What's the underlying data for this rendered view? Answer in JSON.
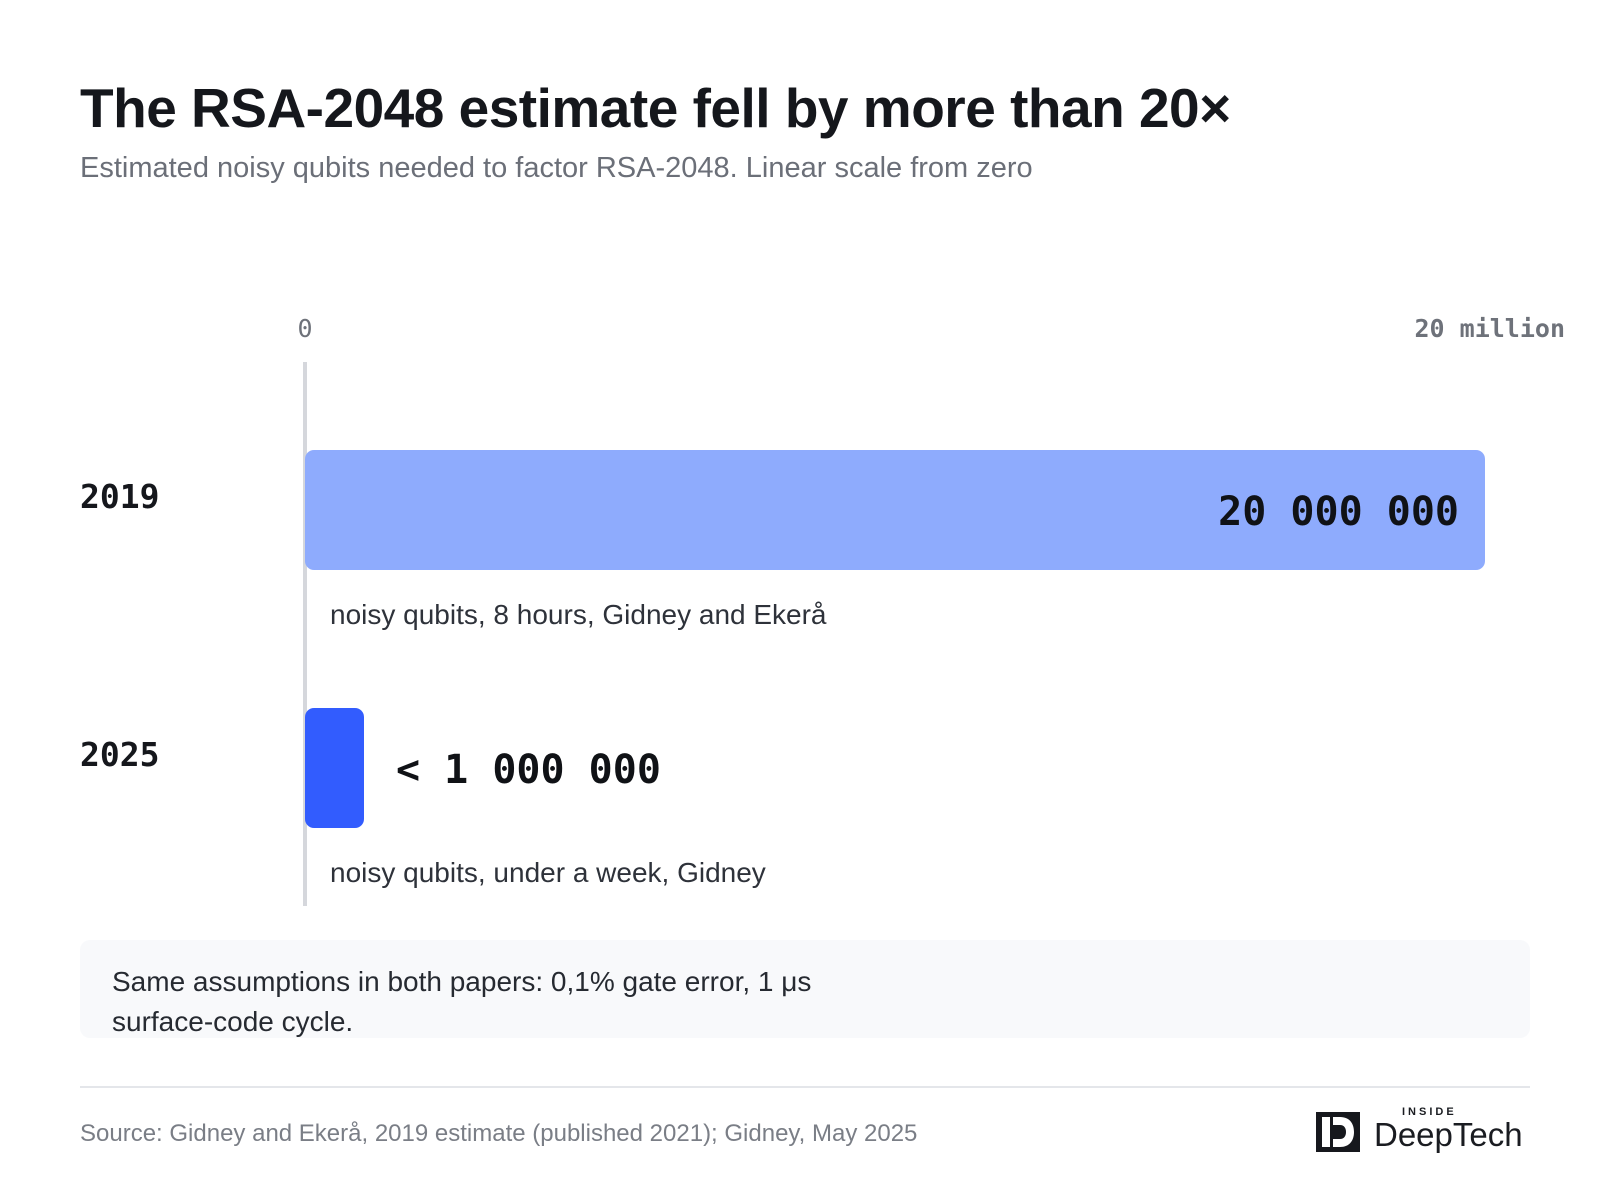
{
  "title": "The RSA-2048 estimate fell by more than 20×",
  "subtitle": "Estimated noisy qubits needed to factor RSA-2048. Linear scale from zero",
  "chart_data": {
    "type": "bar",
    "orientation": "horizontal",
    "xlim": [
      0,
      20000000
    ],
    "x_tick_labels": [
      "0",
      "20 million"
    ],
    "categories": [
      "2019",
      "2025"
    ],
    "values": [
      20000000,
      1000000
    ],
    "value_labels": [
      "20 000 000",
      "< 1 000 000"
    ],
    "captions": [
      "noisy qubits, 8 hours, Gidney and Ekerå",
      "noisy qubits, under a week, Gidney"
    ],
    "colors": [
      "#8eabfd",
      "#325cfe"
    ],
    "grid": false,
    "legend": "none"
  },
  "note": "Same assumptions in both papers: 0,1% gate error, 1 μs surface-code cycle.",
  "source": "Source: Gidney and Ekerå, 2019 estimate (published 2021); Gidney, May 2025",
  "logo": {
    "small": "INSIDE",
    "big": "DeepTech"
  }
}
